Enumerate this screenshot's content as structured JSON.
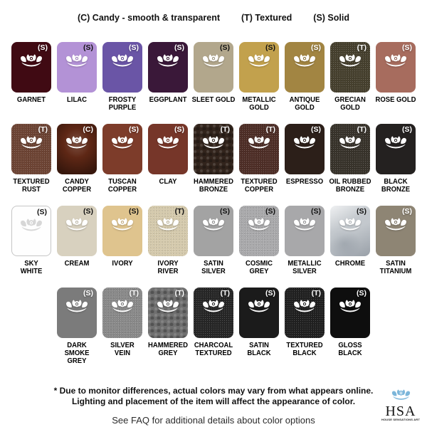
{
  "legend": {
    "candy": "(C) Candy - smooth & transparent",
    "textured": "(T) Textured",
    "solid": "(S) Solid"
  },
  "rows": [
    [
      {
        "name": "GARNET",
        "lines": [
          "GARNET"
        ],
        "type": "(S)",
        "color": "#400a13",
        "texture": "plain",
        "letter": "light"
      },
      {
        "name": "LILAC",
        "lines": [
          "LILAC"
        ],
        "type": "(S)",
        "color": "#b392d6",
        "texture": "plain",
        "letter": "dark"
      },
      {
        "name": "FROSTY PURPLE",
        "lines": [
          "FROSTY",
          "PURPLE"
        ],
        "type": "(S)",
        "color": "#6a55a6",
        "texture": "plain",
        "letter": "light"
      },
      {
        "name": "EGGPLANT",
        "lines": [
          "EGGPLANT"
        ],
        "type": "(S)",
        "color": "#3a1839",
        "texture": "plain",
        "letter": "light"
      },
      {
        "name": "SLEET GOLD",
        "lines": [
          "SLEET GOLD"
        ],
        "type": "(S)",
        "color": "#b2a78c",
        "texture": "plain",
        "letter": "dark"
      },
      {
        "name": "METALLIC GOLD",
        "lines": [
          "METALLIC",
          "GOLD"
        ],
        "type": "(S)",
        "color": "#c2a14d",
        "texture": "plain",
        "letter": "dark"
      },
      {
        "name": "ANTIQUE GOLD",
        "lines": [
          "ANTIQUE",
          "GOLD"
        ],
        "type": "(S)",
        "color": "#a28542",
        "texture": "plain",
        "letter": "light"
      },
      {
        "name": "GRECIAN GOLD",
        "lines": [
          "GRECIAN",
          "GOLD"
        ],
        "type": "(T)",
        "color": "#46402e",
        "texture": "speckle",
        "letter": "light"
      },
      {
        "name": "ROSE GOLD",
        "lines": [
          "ROSE GOLD"
        ],
        "type": "(S)",
        "color": "#a76c5e",
        "texture": "plain",
        "letter": "light"
      }
    ],
    [
      {
        "name": "TEXTURED RUST",
        "lines": [
          "TEXTURED",
          "RUST"
        ],
        "type": "(T)",
        "color": "#6d4434",
        "texture": "speckle",
        "letter": "light"
      },
      {
        "name": "CANDY COPPER",
        "lines": [
          "CANDY",
          "COPPER"
        ],
        "type": "(C)",
        "color": "#5e2715",
        "texture": "candy",
        "letter": "light"
      },
      {
        "name": "TUSCAN COPPER",
        "lines": [
          "TUSCAN",
          "COPPER"
        ],
        "type": "(S)",
        "color": "#7d3c2a",
        "texture": "plain",
        "letter": "light"
      },
      {
        "name": "CLAY",
        "lines": [
          "CLAY"
        ],
        "type": "(S)",
        "color": "#763629",
        "texture": "plain",
        "letter": "light"
      },
      {
        "name": "HAMMERED BRONZE",
        "lines": [
          "HAMMERED",
          "BRONZE"
        ],
        "type": "(T)",
        "color": "#32241c",
        "texture": "hammered",
        "letter": "light"
      },
      {
        "name": "TEXTURED COPPER",
        "lines": [
          "TEXTURED",
          "COPPER"
        ],
        "type": "(T)",
        "color": "#4e2e27",
        "texture": "speckle",
        "letter": "light"
      },
      {
        "name": "ESPRESSO",
        "lines": [
          "ESPRESSO"
        ],
        "type": "(S)",
        "color": "#2c1f19",
        "texture": "plain",
        "letter": "light"
      },
      {
        "name": "OIL RUBBED BRONZE",
        "lines": [
          "OIL RUBBED",
          "BRONZE"
        ],
        "type": "(T)",
        "color": "#38332b",
        "texture": "speckle",
        "letter": "light"
      },
      {
        "name": "BLACK BRONZE",
        "lines": [
          "BLACK",
          "BRONZE"
        ],
        "type": "(S)",
        "color": "#242120",
        "texture": "plain",
        "letter": "light"
      }
    ],
    [
      {
        "name": "SKY WHITE",
        "lines": [
          "SKY",
          "WHITE"
        ],
        "type": "(S)",
        "color": "#fefefe",
        "texture": "plain",
        "letter": "dark",
        "lotus": "grey",
        "border": true
      },
      {
        "name": "CREAM",
        "lines": [
          "CREAM"
        ],
        "type": "(S)",
        "color": "#d8d1bf",
        "texture": "plain",
        "letter": "dark"
      },
      {
        "name": "IVORY",
        "lines": [
          "IVORY"
        ],
        "type": "(S)",
        "color": "#dfc48e",
        "texture": "plain",
        "letter": "dark"
      },
      {
        "name": "IVORY RIVER",
        "lines": [
          "IVORY",
          "RIVER"
        ],
        "type": "(T)",
        "color": "#d5caad",
        "texture": "speckle",
        "letter": "dark"
      },
      {
        "name": "SATIN SILVER",
        "lines": [
          "SATIN",
          "SILVER"
        ],
        "type": "(S)",
        "color": "#a3a3a3",
        "texture": "plain",
        "letter": "dark"
      },
      {
        "name": "COSMIC GREY",
        "lines": [
          "COSMIC",
          "GREY"
        ],
        "type": "(S)",
        "color": "#aaaaac",
        "texture": "speckle",
        "letter": "dark"
      },
      {
        "name": "METALLIC SILVER",
        "lines": [
          "METALLIC",
          "SILVER"
        ],
        "type": "(S)",
        "color": "#a8a8aa",
        "texture": "plain",
        "letter": "dark"
      },
      {
        "name": "CHROME",
        "lines": [
          "CHROME"
        ],
        "type": "(S)",
        "color": "#c3c8cd",
        "texture": "chrome",
        "letter": "dark"
      },
      {
        "name": "SATIN TITANIUM",
        "lines": [
          "SATIN",
          "TITANIUM"
        ],
        "type": "(S)",
        "color": "#8e8574",
        "texture": "plain",
        "letter": "light"
      }
    ],
    [
      {
        "name": "DARK SMOKE GREY",
        "lines": [
          "DARK SMOKE",
          "GREY"
        ],
        "type": "(S)",
        "color": "#7b7b7b",
        "texture": "plain",
        "letter": "light"
      },
      {
        "name": "SILVER VEIN",
        "lines": [
          "SILVER",
          "VEIN"
        ],
        "type": "(T)",
        "color": "#8a8a8a",
        "texture": "speckle",
        "letter": "light"
      },
      {
        "name": "HAMMERED GREY",
        "lines": [
          "HAMMERED",
          "GREY"
        ],
        "type": "(T)",
        "color": "#6f6f6f",
        "texture": "hammered",
        "letter": "light"
      },
      {
        "name": "CHARCOAL TEXTURED",
        "lines": [
          "CHARCOAL",
          "TEXTURED"
        ],
        "type": "(T)",
        "color": "#262626",
        "texture": "speckle",
        "letter": "light"
      },
      {
        "name": "SATIN BLACK",
        "lines": [
          "SATIN",
          "BLACK"
        ],
        "type": "(S)",
        "color": "#1b1b1b",
        "texture": "plain",
        "letter": "light"
      },
      {
        "name": "TEXTURED BLACK",
        "lines": [
          "TEXTURED",
          "BLACK"
        ],
        "type": "(T)",
        "color": "#202020",
        "texture": "speckle",
        "letter": "light"
      },
      {
        "name": "GLOSS BLACK",
        "lines": [
          "GLOSS",
          "BLACK"
        ],
        "type": "(S)",
        "color": "#0e0e0e",
        "texture": "plain",
        "letter": "light"
      }
    ]
  ],
  "footer": {
    "note_line1": "* Due to monitor differences, actual colors may vary from what appears online.",
    "note_line2": "Lighting and placement of the item will affect the appearance of color.",
    "faq": "See FAQ for additional details about color options"
  },
  "logo": {
    "acronym": "HSA",
    "tagline": "HOUSE SENSATIONS ART",
    "accent_color": "#7cb6da"
  }
}
